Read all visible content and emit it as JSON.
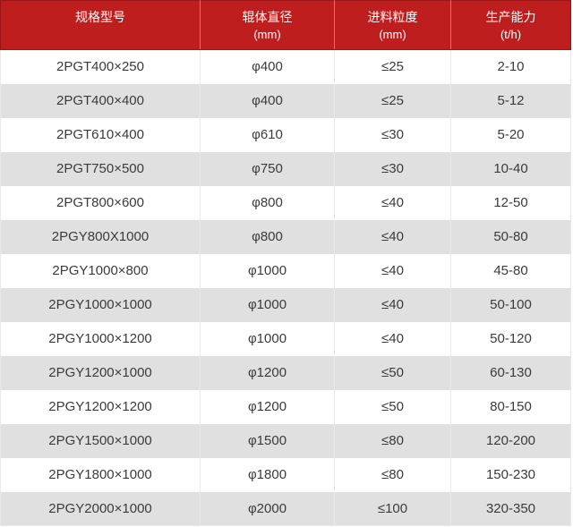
{
  "table": {
    "columns": [
      {
        "title": "规格型号",
        "unit": ""
      },
      {
        "title": "辊体直径",
        "unit": "(mm)"
      },
      {
        "title": "进料粒度",
        "unit": "(mm)"
      },
      {
        "title": "生产能力",
        "unit": "(t/h)"
      }
    ],
    "rows": [
      [
        "2PGT400×250",
        "φ400",
        "≤25",
        "2-10"
      ],
      [
        "2PGT400×400",
        "φ400",
        "≤25",
        "5-12"
      ],
      [
        "2PGT610×400",
        "φ610",
        "≤30",
        "5-20"
      ],
      [
        "2PGT750×500",
        "φ750",
        "≤30",
        "10-40"
      ],
      [
        "2PGT800×600",
        "φ800",
        "≤40",
        "12-50"
      ],
      [
        "2PGY800X1000",
        "φ800",
        "≤40",
        "50-80"
      ],
      [
        "2PGY1000×800",
        "φ1000",
        "≤40",
        "45-80"
      ],
      [
        "2PGY1000×1000",
        "φ1000",
        "≤40",
        "50-100"
      ],
      [
        "2PGY1000×1200",
        "φ1000",
        "≤40",
        "50-120"
      ],
      [
        "2PGY1200×1000",
        "φ1200",
        "≤50",
        "60-130"
      ],
      [
        "2PGY1200×1200",
        "φ1200",
        "≤50",
        "80-150"
      ],
      [
        "2PGY1500×1000",
        "φ1500",
        "≤80",
        "120-200"
      ],
      [
        "2PGY1800×1000",
        "φ1800",
        "≤80",
        "150-230"
      ],
      [
        "2PGY2000×1000",
        "φ2000",
        "≤100",
        "320-350"
      ]
    ]
  },
  "colors": {
    "header_bg": "#bf1e1e",
    "header_border": "#9d1212",
    "header_text": "#ffffff",
    "row_bg": "#ffffff",
    "row_alt_bg": "#e0e0e0",
    "cell_border": "#e9e9e9",
    "text": "#3b3b3b"
  }
}
